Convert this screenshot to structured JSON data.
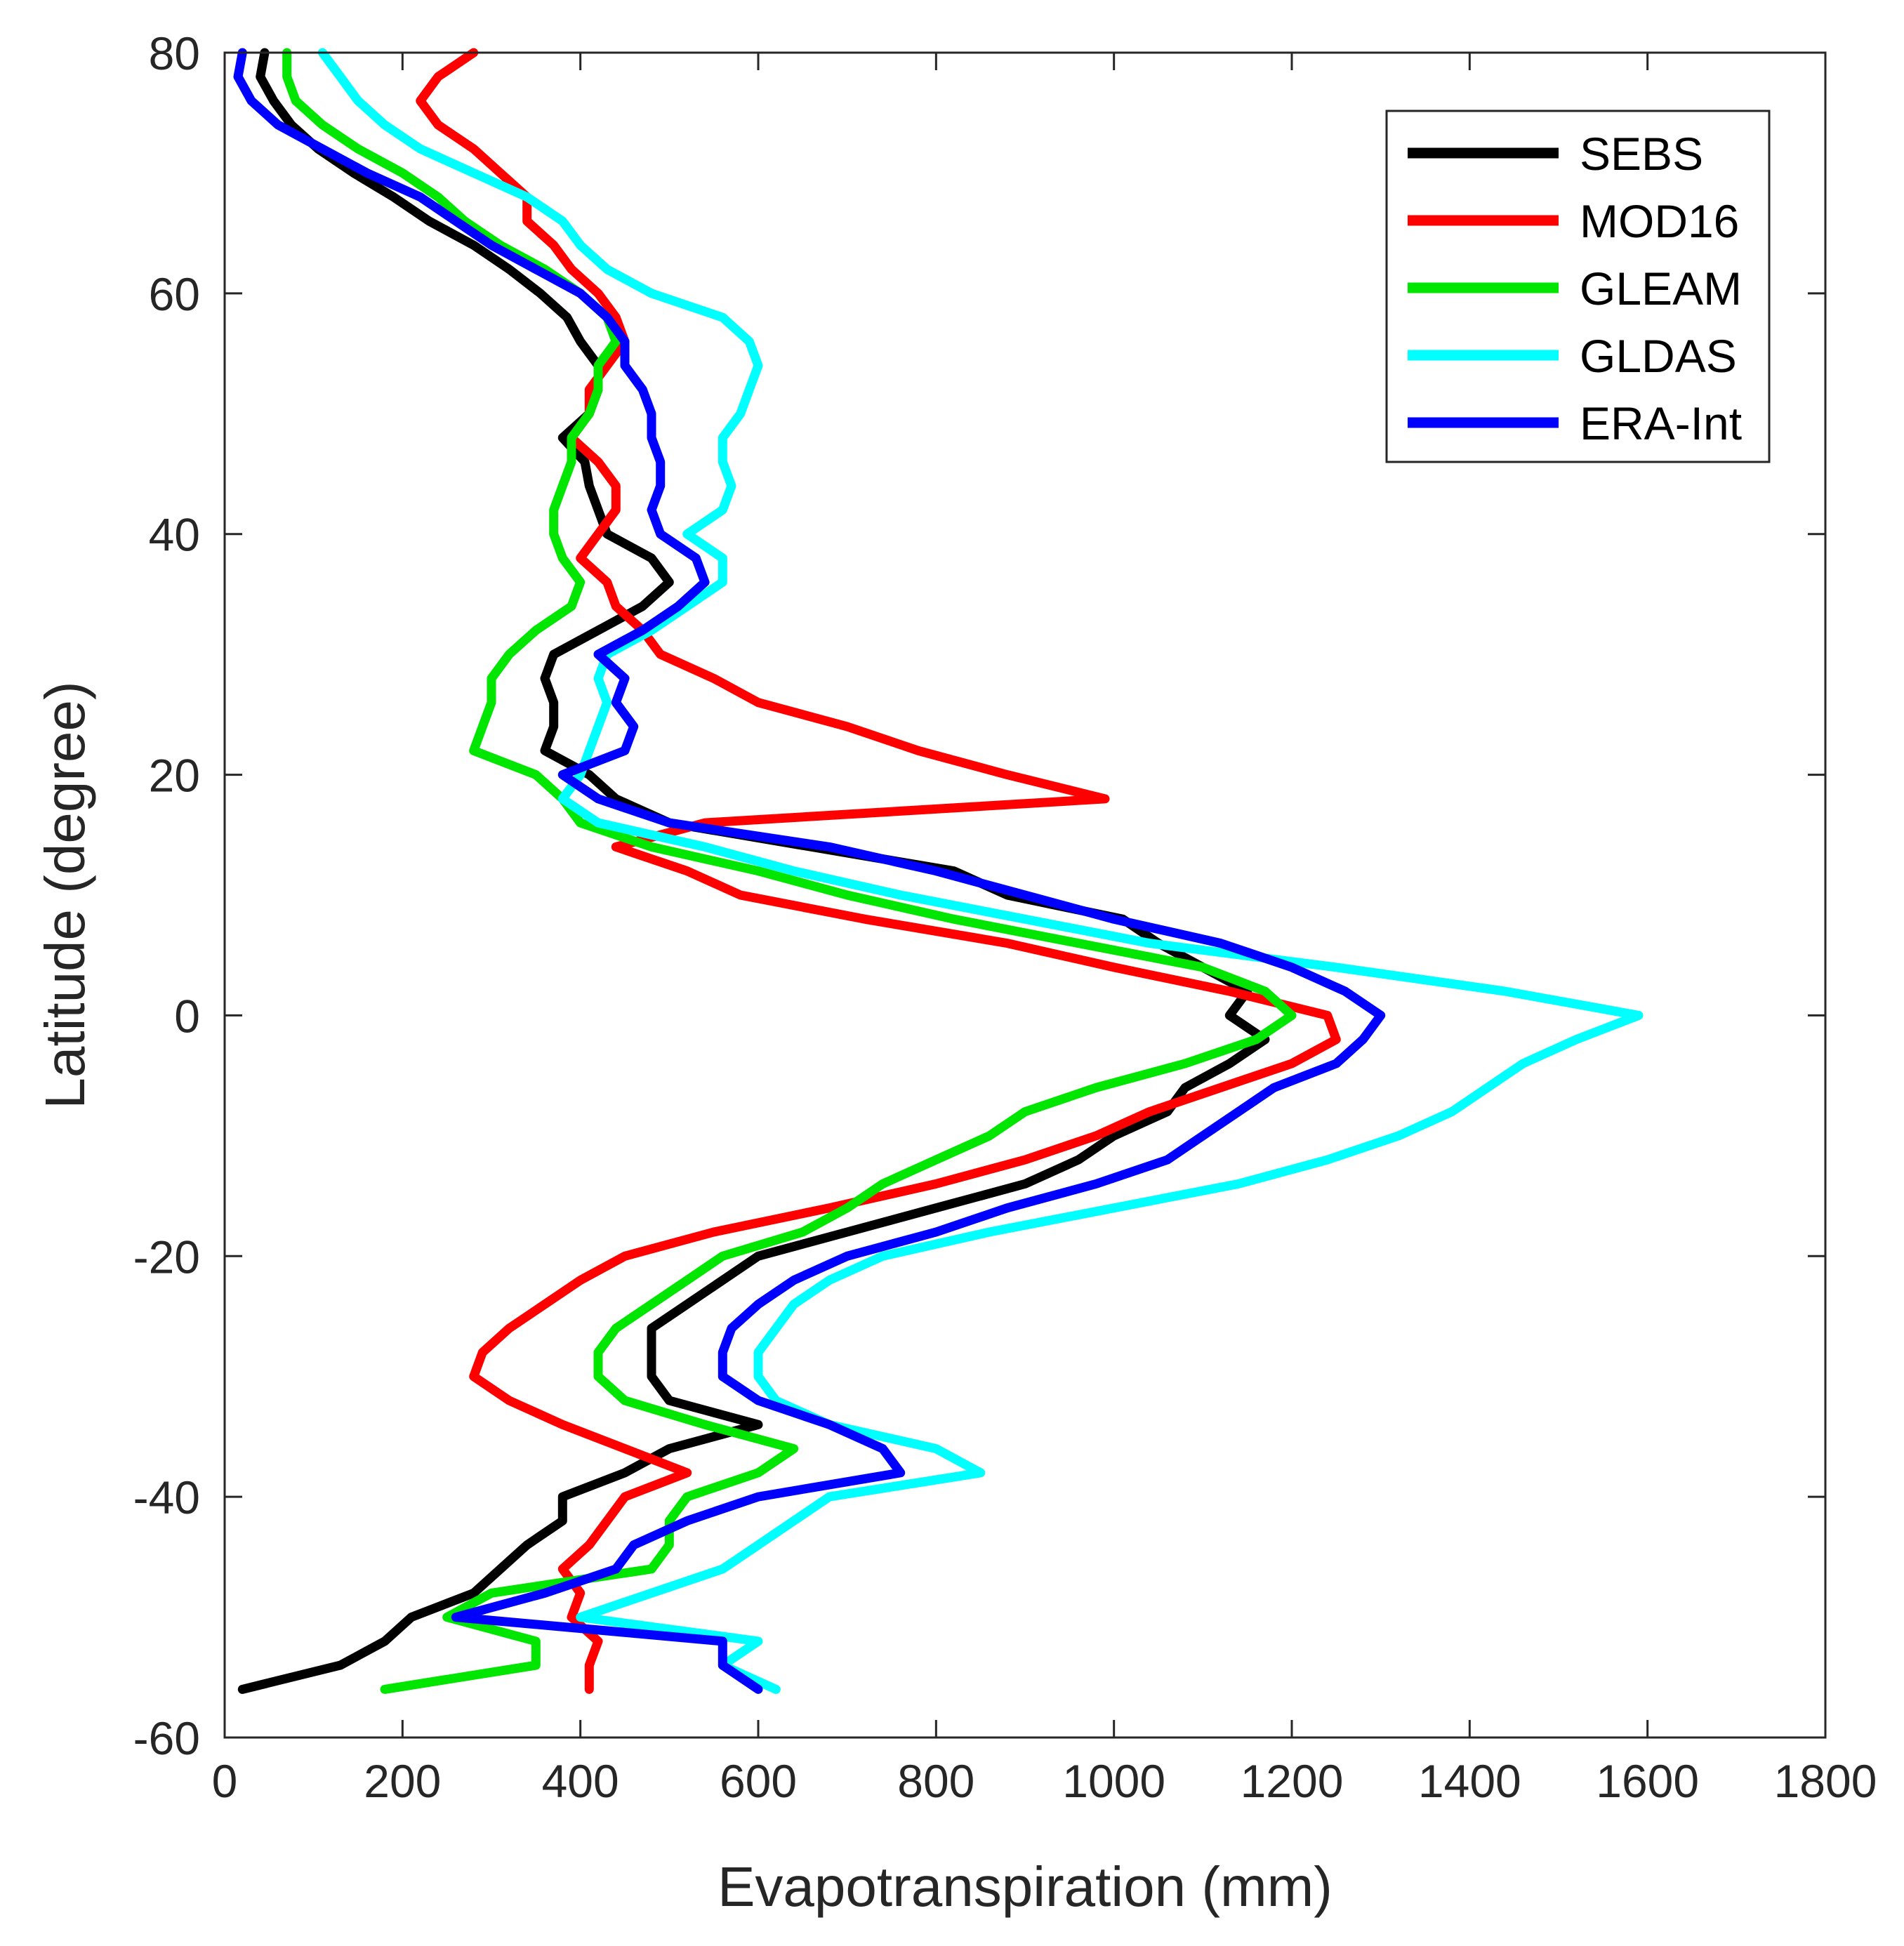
{
  "chart_data": {
    "type": "line",
    "title": "",
    "xlabel": "Evapotranspiration (mm)",
    "ylabel": "Latitude (degree)",
    "xlim": [
      0,
      1800
    ],
    "ylim": [
      -60,
      80
    ],
    "xticks": [
      0,
      200,
      400,
      600,
      800,
      1000,
      1200,
      1400,
      1600,
      1800
    ],
    "yticks": [
      -60,
      -40,
      -20,
      0,
      20,
      40,
      60,
      80
    ],
    "xtick_labels": [
      "0",
      "200",
      "400",
      "600",
      "800",
      "1000",
      "1200",
      "1400",
      "1600",
      "1800"
    ],
    "ytick_labels": [
      "-60",
      "-40",
      "-20",
      "0",
      "20",
      "40",
      "60",
      "80"
    ],
    "grid": false,
    "legend_position": "top-right",
    "series": [
      {
        "name": "SEBS",
        "color": "#000000",
        "lat": [
          80,
          78,
          76,
          74,
          72,
          70,
          68,
          66,
          64,
          62,
          60,
          58,
          56,
          54,
          52,
          50,
          48,
          46,
          44,
          42,
          40,
          38,
          36,
          34,
          32,
          30,
          28,
          26,
          24,
          22,
          20,
          18,
          16,
          14,
          12,
          10,
          8,
          6,
          4,
          2,
          0,
          -2,
          -4,
          -6,
          -8,
          -10,
          -12,
          -14,
          -16,
          -18,
          -20,
          -22,
          -24,
          -26,
          -28,
          -30,
          -32,
          -34,
          -36,
          -38,
          -40,
          -42,
          -44,
          -46,
          -48,
          -50,
          -52,
          -54,
          -56
        ],
        "et": [
          45,
          40,
          55,
          75,
          105,
          145,
          190,
          230,
          280,
          320,
          355,
          385,
          400,
          420,
          420,
          410,
          380,
          405,
          410,
          420,
          430,
          480,
          500,
          470,
          420,
          370,
          360,
          370,
          370,
          360,
          410,
          440,
          500,
          660,
          820,
          880,
          1010,
          1050,
          1100,
          1150,
          1130,
          1170,
          1130,
          1080,
          1060,
          1000,
          960,
          900,
          800,
          700,
          600,
          560,
          520,
          480,
          480,
          480,
          500,
          600,
          500,
          450,
          380,
          380,
          340,
          310,
          280,
          210,
          180,
          130,
          20
        ]
      },
      {
        "name": "MOD16",
        "color": "#ff0000",
        "lat": [
          80,
          78,
          76,
          74,
          72,
          70,
          68,
          66,
          64,
          62,
          60,
          58,
          56,
          54,
          52,
          50,
          48,
          46,
          44,
          42,
          40,
          38,
          36,
          34,
          32,
          30,
          28,
          26,
          24,
          22,
          20,
          18,
          16,
          14,
          12,
          10,
          8,
          6,
          4,
          2,
          0,
          -2,
          -4,
          -6,
          -8,
          -10,
          -12,
          -14,
          -16,
          -18,
          -20,
          -22,
          -24,
          -26,
          -28,
          -30,
          -32,
          -34,
          -36,
          -38,
          -40,
          -42,
          -44,
          -46,
          -48,
          -50,
          -52,
          -54,
          -56
        ],
        "et": [
          280,
          240,
          220,
          240,
          280,
          310,
          340,
          340,
          370,
          390,
          420,
          440,
          450,
          430,
          410,
          410,
          390,
          420,
          440,
          440,
          420,
          400,
          430,
          440,
          470,
          490,
          550,
          600,
          700,
          780,
          880,
          990,
          540,
          440,
          520,
          580,
          720,
          880,
          1000,
          1130,
          1240,
          1250,
          1200,
          1120,
          1040,
          980,
          900,
          800,
          680,
          550,
          450,
          400,
          360,
          320,
          290,
          280,
          320,
          380,
          450,
          520,
          450,
          430,
          410,
          380,
          400,
          390,
          420,
          410,
          410
        ]
      },
      {
        "name": "GLEAM",
        "color": "#00e600",
        "lat": [
          80,
          78,
          76,
          74,
          72,
          70,
          68,
          66,
          64,
          62,
          60,
          58,
          56,
          54,
          52,
          50,
          48,
          46,
          44,
          42,
          40,
          38,
          36,
          34,
          32,
          30,
          28,
          26,
          24,
          22,
          20,
          18,
          16,
          14,
          12,
          10,
          8,
          6,
          4,
          2,
          0,
          -2,
          -4,
          -6,
          -8,
          -10,
          -12,
          -14,
          -16,
          -18,
          -20,
          -22,
          -24,
          -26,
          -28,
          -30,
          -32,
          -34,
          -36,
          -38,
          -40,
          -42,
          -44,
          -46,
          -48,
          -50,
          -52,
          -54,
          -56
        ],
        "et": [
          70,
          70,
          80,
          110,
          150,
          200,
          240,
          270,
          310,
          360,
          400,
          430,
          440,
          420,
          420,
          410,
          390,
          390,
          380,
          370,
          370,
          380,
          400,
          390,
          350,
          320,
          300,
          300,
          290,
          280,
          350,
          380,
          400,
          480,
          600,
          700,
          820,
          960,
          1100,
          1170,
          1200,
          1160,
          1080,
          980,
          900,
          860,
          800,
          740,
          700,
          650,
          560,
          520,
          480,
          440,
          420,
          420,
          450,
          540,
          640,
          600,
          520,
          500,
          500,
          480,
          300,
          250,
          350,
          350,
          180
        ]
      },
      {
        "name": "GLDAS",
        "color": "#00ffff",
        "lat": [
          80,
          78,
          76,
          74,
          72,
          70,
          68,
          66,
          64,
          62,
          60,
          58,
          56,
          54,
          52,
          50,
          48,
          46,
          44,
          42,
          40,
          38,
          36,
          34,
          32,
          30,
          28,
          26,
          24,
          22,
          20,
          18,
          16,
          14,
          12,
          10,
          8,
          6,
          4,
          2,
          0,
          -2,
          -4,
          -6,
          -8,
          -10,
          -12,
          -14,
          -16,
          -18,
          -20,
          -22,
          -24,
          -26,
          -28,
          -30,
          -32,
          -34,
          -36,
          -38,
          -40,
          -42,
          -44,
          -46,
          -48,
          -50,
          -52,
          -54,
          -56
        ],
        "et": [
          110,
          130,
          150,
          180,
          220,
          280,
          340,
          380,
          400,
          430,
          480,
          560,
          590,
          600,
          590,
          580,
          560,
          560,
          570,
          560,
          520,
          560,
          560,
          520,
          480,
          430,
          420,
          430,
          420,
          410,
          400,
          380,
          420,
          540,
          640,
          760,
          900,
          1040,
          1250,
          1440,
          1590,
          1520,
          1460,
          1420,
          1380,
          1320,
          1240,
          1140,
          1000,
          860,
          740,
          680,
          640,
          620,
          600,
          600,
          620,
          680,
          800,
          850,
          680,
          640,
          600,
          560,
          480,
          400,
          600,
          560,
          620
        ]
      },
      {
        "name": "ERA-Int",
        "color": "#0000ff",
        "lat": [
          80,
          78,
          76,
          74,
          72,
          70,
          68,
          66,
          64,
          62,
          60,
          58,
          56,
          54,
          52,
          50,
          48,
          46,
          44,
          42,
          40,
          38,
          36,
          34,
          32,
          30,
          28,
          26,
          24,
          22,
          20,
          18,
          16,
          14,
          12,
          10,
          8,
          6,
          4,
          2,
          0,
          -2,
          -4,
          -6,
          -8,
          -10,
          -12,
          -14,
          -16,
          -18,
          -20,
          -22,
          -24,
          -26,
          -28,
          -30,
          -32,
          -34,
          -36,
          -38,
          -40,
          -42,
          -44,
          -46,
          -48,
          -50,
          -52,
          -54,
          -56
        ],
        "et": [
          20,
          15,
          30,
          60,
          110,
          160,
          220,
          260,
          300,
          350,
          400,
          430,
          450,
          450,
          470,
          480,
          480,
          490,
          490,
          480,
          490,
          530,
          540,
          510,
          470,
          420,
          450,
          440,
          460,
          450,
          380,
          420,
          500,
          680,
          800,
          900,
          1000,
          1120,
          1200,
          1260,
          1300,
          1280,
          1250,
          1180,
          1140,
          1100,
          1060,
          980,
          880,
          800,
          700,
          640,
          600,
          570,
          560,
          560,
          600,
          680,
          740,
          760,
          600,
          520,
          460,
          440,
          360,
          260,
          560,
          560,
          600
        ]
      }
    ]
  }
}
